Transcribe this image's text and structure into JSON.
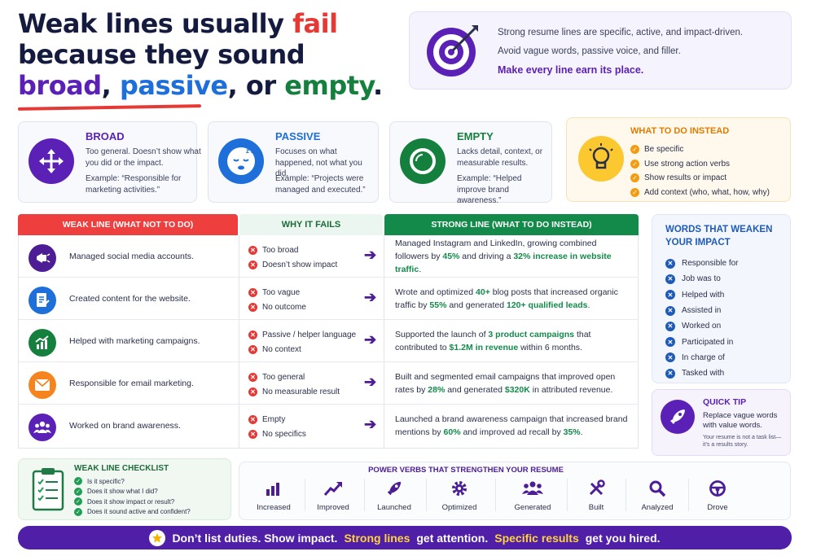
{
  "headline": {
    "line1_a": "Weak lines usually ",
    "line1_fail": "fail",
    "line2": "because they sound",
    "word_broad": "broad",
    "sep1": ", ",
    "word_passive": "passive",
    "sep2": ", or ",
    "word_empty": "empty",
    "end": "."
  },
  "intro": {
    "p1": "Strong resume lines are specific, active, and impact-driven.",
    "p2": "Avoid vague words, passive voice, and filler.",
    "p3": "Make every line earn its place."
  },
  "categories": [
    {
      "title": "BROAD",
      "desc": "Too general. Doesn’t show what you did or the impact.",
      "example": "Example: “Responsible for marketing activities.”",
      "color": "#5b21b6",
      "icon": "arrows-out-icon"
    },
    {
      "title": "PASSIVE",
      "desc": "Focuses on what happened, not what you did.",
      "example": "Example: “Projects were managed and executed.”",
      "color": "#1e6fd9",
      "icon": "sleepy-face-icon"
    },
    {
      "title": "EMPTY",
      "desc": "Lacks detail, context, or measurable results.",
      "example": "Example: “Helped improve brand awareness.”",
      "color": "#15803d",
      "icon": "empty-circle-icon"
    }
  ],
  "todo": {
    "title": "WHAT TO DO INSTEAD",
    "items": [
      "Be specific",
      "Use strong action verbs",
      "Show results or impact",
      "Add context (who, what, how, why)"
    ]
  },
  "table": {
    "headers": {
      "weak": "WEAK LINE (WHAT NOT TO DO)",
      "why": "WHY IT FAILS",
      "strong": "STRONG LINE (WHAT TO DO INSTEAD)"
    },
    "rows": [
      {
        "weak": "Managed social media accounts.",
        "why": [
          "Too broad",
          "Doesn’t show impact"
        ],
        "icon_color": "#4c1d95",
        "icon": "megaphone-icon",
        "s1": "Managed Instagram and LinkedIn, growing combined followers by ",
        "h1": "45%",
        "s2": " and driving a ",
        "h2": "32% increase in website traffic",
        "s3": "."
      },
      {
        "weak": "Created content for the website.",
        "why": [
          "Too vague",
          "No outcome"
        ],
        "icon_color": "#1e6fd9",
        "icon": "document-icon",
        "s1": "Wrote and optimized ",
        "h1": "40+",
        "s2": " blog posts that increased organic traffic by ",
        "h2": "55%",
        "s3": " and generated ",
        "h3": "120+ qualified leads",
        "s4": "."
      },
      {
        "weak": "Helped with marketing campaigns.",
        "why": [
          "Passive / helper language",
          "No context"
        ],
        "icon_color": "#15803d",
        "icon": "chart-up-icon",
        "s1": "Supported the launch of ",
        "h1": "3 product campaigns",
        "s2": " that contributed to ",
        "h2": "$1.2M in revenue",
        "s3": " within 6 months."
      },
      {
        "weak": "Responsible for email marketing.",
        "why": [
          "Too general",
          "No measurable result"
        ],
        "icon_color": "#f5841f",
        "icon": "envelope-icon",
        "s1": "Built and segmented email campaigns that improved open rates by ",
        "h1": "28%",
        "s2": " and generated ",
        "h2": "$320K",
        "s3": " in attributed revenue."
      },
      {
        "weak": "Worked on brand awareness.",
        "why": [
          "Empty",
          "No specifics"
        ],
        "icon_color": "#5b21b6",
        "icon": "people-icon",
        "s1": "Launched a brand awareness campaign that increased brand mentions by ",
        "h1": "60%",
        "s2": " and improved ad recall by ",
        "h2": "35%",
        "s3": "."
      }
    ]
  },
  "weaken": {
    "title": "WORDS THAT WEAKEN YOUR IMPACT",
    "items": [
      "Responsible for",
      "Job was to",
      "Helped with",
      "Assisted in",
      "Worked on",
      "Participated in",
      "In charge of",
      "Tasked with"
    ]
  },
  "tip": {
    "title": "QUICK TIP",
    "text": "Replace vague words with value words.",
    "small": "Your resume is not a task list— it’s a results story."
  },
  "checklist": {
    "title": "WEAK LINE CHECKLIST",
    "items": [
      "Is it specific?",
      "Does it show what I did?",
      "Does it show impact or result?",
      "Does it sound active and confident?"
    ]
  },
  "verbs": {
    "title": "POWER VERBS THAT STRENGTHEN YOUR RESUME",
    "items": [
      {
        "label": "Increased",
        "icon": "bar-chart-icon"
      },
      {
        "label": "Improved",
        "icon": "trend-up-icon"
      },
      {
        "label": "Launched",
        "icon": "rocket-icon"
      },
      {
        "label": "Optimized",
        "icon": "gear-icon"
      },
      {
        "label": "Generated",
        "icon": "team-icon"
      },
      {
        "label": "Built",
        "icon": "tools-icon"
      },
      {
        "label": "Analyzed",
        "icon": "magnifier-icon"
      },
      {
        "label": "Drove",
        "icon": "steering-wheel-icon"
      }
    ]
  },
  "banner": {
    "part1": "Don’t list duties. Show impact.",
    "part2": "Strong lines",
    "part3": "get attention.",
    "part4": "Specific results",
    "part5": "get you hired."
  }
}
